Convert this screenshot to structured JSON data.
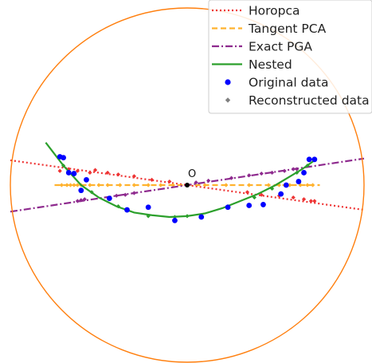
{
  "chart_data": {
    "type": "scatter",
    "title": "",
    "xlabel": "",
    "ylabel": "",
    "xlim": [
      -1.0,
      1.0
    ],
    "ylim": [
      -1.0,
      1.0
    ],
    "grid": false,
    "axes_visible": false,
    "boundary": {
      "shape": "unit-circle",
      "color": "#ff7f0e"
    },
    "origin": {
      "label": "O",
      "x": 0.0,
      "y": 0.0
    },
    "legend": {
      "placement": "top-right",
      "entries": [
        {
          "label": "Horopca",
          "style": "dotted",
          "color": "#ee3333"
        },
        {
          "label": "Tangent PCA",
          "style": "dashed",
          "color": "#ffb22e"
        },
        {
          "label": "Exact PGA",
          "style": "dashdot",
          "color": "#8e2a8e"
        },
        {
          "label": "Nested",
          "style": "solid",
          "color": "#2ca02c"
        },
        {
          "label": "Original data",
          "marker": "circle",
          "color": "#0000ff"
        },
        {
          "label": "Reconstructed data",
          "marker": "diamond",
          "color": "#808080"
        }
      ]
    },
    "series": [
      {
        "name": "Horopca",
        "kind": "geodesic",
        "style": "dotted",
        "color": "#ee3333",
        "line": [
          [
            -1.0,
            0.14
          ],
          [
            1.0,
            -0.14
          ]
        ],
        "points": [
          [
            -0.72,
            0.08
          ],
          [
            -0.67,
            0.09
          ],
          [
            -0.62,
            0.08
          ],
          [
            -0.55,
            0.07
          ],
          [
            -0.52,
            0.085
          ],
          [
            -0.45,
            0.07
          ],
          [
            -0.39,
            0.06
          ],
          [
            -0.3,
            0.05
          ],
          [
            -0.2,
            0.03
          ],
          [
            -0.1,
            0.02
          ],
          [
            0.34,
            -0.04
          ],
          [
            0.42,
            -0.055
          ],
          [
            0.52,
            -0.06
          ],
          [
            0.6,
            -0.07
          ],
          [
            0.66,
            -0.08
          ],
          [
            0.7,
            -0.09
          ],
          [
            0.72,
            -0.09
          ]
        ]
      },
      {
        "name": "Tangent PCA",
        "kind": "line",
        "style": "dashed",
        "color": "#ffb22e",
        "line": [
          [
            -0.75,
            0.0
          ],
          [
            0.75,
            0.0
          ]
        ],
        "points": [
          [
            -0.71,
            0.0
          ],
          [
            -0.68,
            0.0
          ],
          [
            -0.66,
            0.0
          ],
          [
            -0.64,
            0.0
          ],
          [
            -0.62,
            0.0
          ],
          [
            -0.6,
            0.0
          ],
          [
            -0.55,
            0.0
          ],
          [
            -0.5,
            0.0
          ],
          [
            -0.45,
            0.0
          ],
          [
            -0.38,
            0.0
          ],
          [
            -0.3,
            0.0
          ],
          [
            -0.22,
            0.0
          ],
          [
            -0.15,
            0.0
          ],
          [
            -0.08,
            0.0
          ],
          [
            0.1,
            0.0
          ],
          [
            0.22,
            0.0
          ],
          [
            0.35,
            0.0
          ],
          [
            0.46,
            0.0
          ],
          [
            0.52,
            0.0
          ],
          [
            0.58,
            0.0
          ],
          [
            0.64,
            0.0
          ],
          [
            0.68,
            0.0
          ],
          [
            0.71,
            0.0
          ]
        ]
      },
      {
        "name": "Exact PGA",
        "kind": "geodesic",
        "style": "dashdot",
        "color": "#8e2a8e",
        "line": [
          [
            -1.0,
            -0.15
          ],
          [
            1.0,
            0.15
          ]
        ],
        "points": [
          [
            -0.62,
            -0.09
          ],
          [
            -0.6,
            -0.085
          ],
          [
            -0.58,
            -0.08
          ],
          [
            -0.4,
            -0.06
          ],
          [
            -0.35,
            -0.055
          ],
          [
            -0.3,
            -0.045
          ],
          [
            0.05,
            0.015
          ],
          [
            0.12,
            0.025
          ],
          [
            0.25,
            0.04
          ],
          [
            0.35,
            0.055
          ],
          [
            0.42,
            0.065
          ],
          [
            0.48,
            0.07
          ],
          [
            0.55,
            0.08
          ],
          [
            0.6,
            0.09
          ],
          [
            0.62,
            0.09
          ]
        ]
      },
      {
        "name": "Nested",
        "kind": "curve",
        "style": "solid",
        "color": "#2ca02c",
        "line": [
          [
            -0.8,
            0.24
          ],
          [
            -0.7,
            0.11
          ],
          [
            -0.6,
            0.0
          ],
          [
            -0.5,
            -0.07
          ],
          [
            -0.4,
            -0.12
          ],
          [
            -0.3,
            -0.155
          ],
          [
            -0.2,
            -0.17
          ],
          [
            -0.1,
            -0.18
          ],
          [
            0.0,
            -0.175
          ],
          [
            0.1,
            -0.16
          ],
          [
            0.2,
            -0.13
          ],
          [
            0.3,
            -0.09
          ],
          [
            0.4,
            -0.05
          ],
          [
            0.5,
            0.0
          ],
          [
            0.6,
            0.06
          ],
          [
            0.65,
            0.09
          ],
          [
            0.72,
            0.14
          ]
        ],
        "points": [
          [
            -0.7,
            0.11
          ],
          [
            -0.65,
            0.06
          ],
          [
            -0.54,
            -0.04
          ],
          [
            -0.39,
            -0.12
          ],
          [
            -0.22,
            -0.175
          ],
          [
            -0.07,
            -0.18
          ],
          [
            0.0,
            -0.175
          ],
          [
            0.23,
            -0.12
          ],
          [
            0.38,
            -0.07
          ],
          [
            0.48,
            -0.02
          ],
          [
            0.62,
            0.07
          ],
          [
            0.68,
            0.11
          ]
        ]
      },
      {
        "name": "Original data",
        "kind": "points",
        "marker": "circle",
        "color": "#0000ff",
        "points": [
          [
            -0.72,
            0.16
          ],
          [
            -0.7,
            0.155
          ],
          [
            -0.67,
            0.07
          ],
          [
            -0.64,
            0.065
          ],
          [
            -0.57,
            0.03
          ],
          [
            -0.6,
            -0.03
          ],
          [
            -0.44,
            -0.075
          ],
          [
            -0.34,
            -0.14
          ],
          [
            -0.22,
            -0.125
          ],
          [
            -0.07,
            -0.2
          ],
          [
            0.08,
            -0.18
          ],
          [
            0.23,
            -0.125
          ],
          [
            0.35,
            -0.115
          ],
          [
            0.43,
            -0.11
          ],
          [
            0.53,
            -0.05
          ],
          [
            0.56,
            0.0
          ],
          [
            0.63,
            0.02
          ],
          [
            0.66,
            0.07
          ],
          [
            0.69,
            0.145
          ],
          [
            0.72,
            0.145
          ]
        ]
      }
    ]
  }
}
